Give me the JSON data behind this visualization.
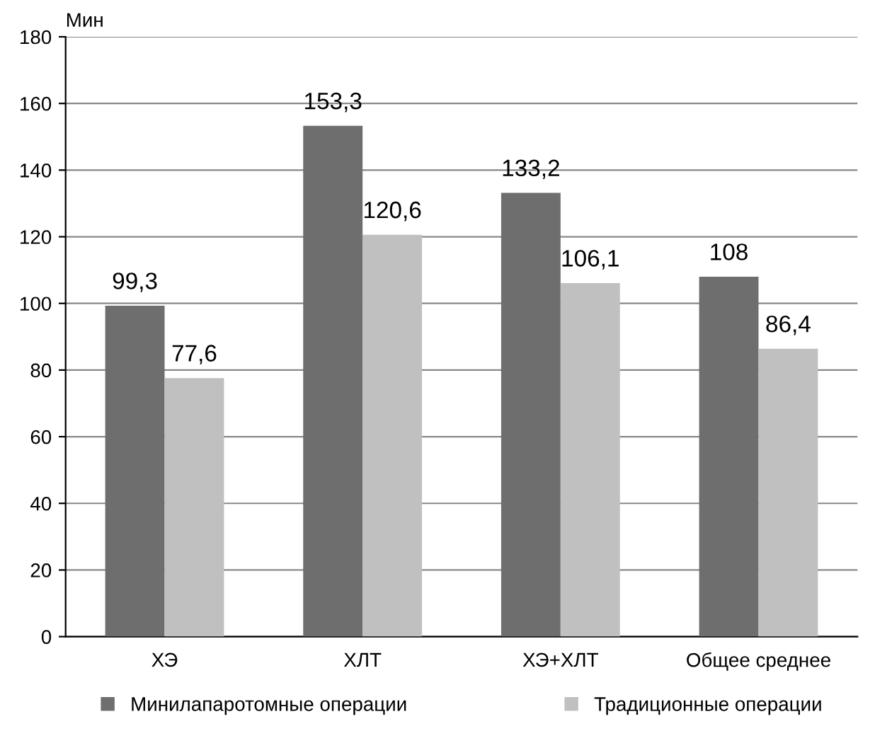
{
  "chart_data": {
    "type": "bar",
    "ylabel": "Мин",
    "categories": [
      "ХЭ",
      "ХЛТ",
      "ХЭ+ХЛТ",
      "Общее среднее"
    ],
    "series": [
      {
        "name": "Минилапаротомные операции",
        "color": "#6e6e6e",
        "values": [
          99.3,
          153.3,
          133.2,
          108
        ],
        "value_labels": [
          "99,3",
          "153,3",
          "133,2",
          "108"
        ]
      },
      {
        "name": "Традиционные операции",
        "color": "#c0c0c0",
        "values": [
          77.6,
          120.6,
          106.1,
          86.4
        ],
        "value_labels": [
          "77,6",
          "120,6",
          "106,1",
          "86,4"
        ]
      }
    ],
    "ylim": [
      0,
      180
    ],
    "yticks": [
      0,
      20,
      40,
      60,
      80,
      100,
      120,
      140,
      160,
      180
    ],
    "grid": "y",
    "legend": "bottom"
  }
}
